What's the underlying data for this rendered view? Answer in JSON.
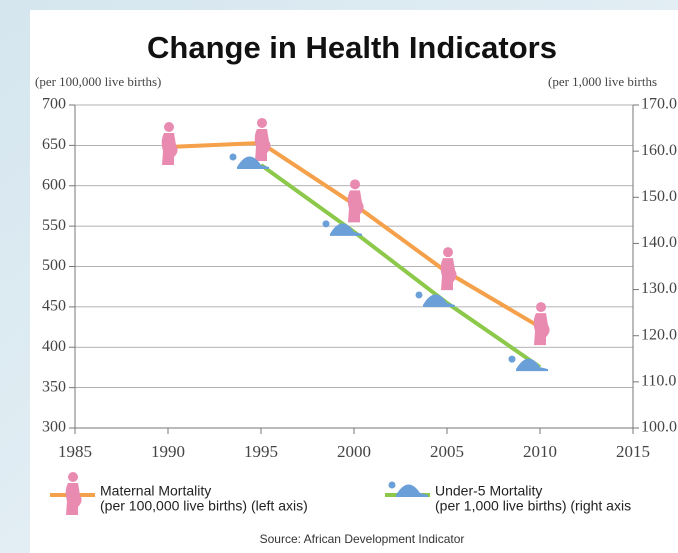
{
  "chart_data": {
    "type": "line",
    "title": "Change in Health Indicators",
    "y_label": "(per 100,000 live births)",
    "y2_label": "(per 1,000 live births",
    "x": [
      1990,
      1995,
      2000,
      2005,
      2010
    ],
    "xlim": [
      1985,
      2015
    ],
    "xticks": [
      1985,
      1990,
      1995,
      2000,
      2005,
      2010,
      2015
    ],
    "ylim": [
      300,
      700
    ],
    "yticks": [
      300,
      350,
      400,
      450,
      500,
      550,
      600,
      650,
      700
    ],
    "y2lim": [
      100,
      170
    ],
    "y2ticks": [
      {
        "value": 100,
        "label": "100.0"
      },
      {
        "value": 110,
        "label": "110.0"
      },
      {
        "value": 120,
        "label": "120.0"
      },
      {
        "value": 130,
        "label": "130.0"
      },
      {
        "value": 140,
        "label": "140.0"
      },
      {
        "value": 150,
        "label": "150.0"
      },
      {
        "value": 160,
        "label": "160.0"
      },
      {
        "value": 170,
        "label": "170.0"
      }
    ],
    "grid": true,
    "series": [
      {
        "name": "Maternal Mortality",
        "legend_sub": "(per 100,000 live births) (left axis)",
        "color": "#f5a04a",
        "marker_color": "#e98bb0",
        "values": [
          648,
          653,
          577,
          493,
          425
        ]
      },
      {
        "name": "Under-5 Mortality",
        "legend_sub": "(per 1,000 live births) (right axis",
        "color": "#8cc94a",
        "marker_color": "#6a9fd8",
        "axis": "y2",
        "values": [
          null,
          157.0,
          142.5,
          127.1,
          113.2
        ]
      }
    ],
    "source": "Source: African Development Indicator"
  }
}
